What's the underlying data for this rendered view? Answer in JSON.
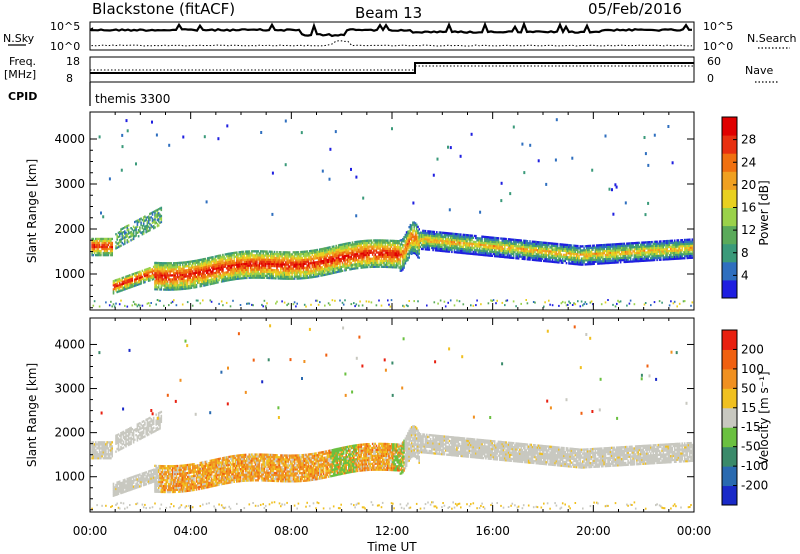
{
  "header": {
    "station": "Blackstone (fitACF)",
    "beam": "Beam 13",
    "date": "05/Feb/2016"
  },
  "top_panels": {
    "nsky_label": "N.Sky",
    "nsearch_label": "N.Search",
    "nsky_ticks": [
      "10^5",
      "10^0"
    ],
    "nsearch_ticks": [
      "10^5",
      "10^0"
    ],
    "freq_label_1": "Freq.",
    "freq_label_2": "[MHz]",
    "freq_ticks": [
      "18",
      "8"
    ],
    "nave_label": "Nave",
    "nave_ticks": [
      "60",
      "0"
    ],
    "cpid_label": "CPID",
    "cpid_value": "themis 3300"
  },
  "chart_data": [
    {
      "type": "heatmap",
      "name": "power",
      "ylabel": "Slant Range [km]",
      "ylim": [
        200,
        4600
      ],
      "yticks": [
        "1000",
        "2000",
        "3000",
        "4000"
      ],
      "xlim_hours": [
        0,
        24
      ],
      "colorbar_label": "Power [dB]",
      "colorbar_ticks": [
        "4",
        "8",
        "12",
        "16",
        "20",
        "24",
        "28"
      ],
      "colorbar_colors": [
        "#1f1fe0",
        "#2f6fbf",
        "#3a9a7a",
        "#5aaa5a",
        "#9ad24a",
        "#e8d020",
        "#f0a020",
        "#f07010",
        "#e83010",
        "#e00000"
      ],
      "range": [
        0,
        30
      ]
    },
    {
      "type": "heatmap",
      "name": "velocity",
      "ylabel": "Slant Range [km]",
      "ylim": [
        200,
        4600
      ],
      "yticks": [
        "1000",
        "2000",
        "3000",
        "4000"
      ],
      "xlim_hours": [
        0,
        24
      ],
      "colorbar_label": "Velocity [m s⁻¹]",
      "colorbar_ticks": [
        "200",
        "100",
        "50",
        "15",
        "-15",
        "-50",
        "-100",
        "-200"
      ],
      "colorbar_colors": [
        "#1a2ac8",
        "#2a6ab0",
        "#3a8a6a",
        "#6ac040",
        "#c8c8c0",
        "#f0c020",
        "#f09020",
        "#f06010",
        "#e82010"
      ]
    }
  ],
  "xaxis": {
    "label": "Time UT",
    "ticks": [
      "00:00",
      "04:00",
      "08:00",
      "12:00",
      "16:00",
      "20:00",
      "00:00"
    ]
  }
}
